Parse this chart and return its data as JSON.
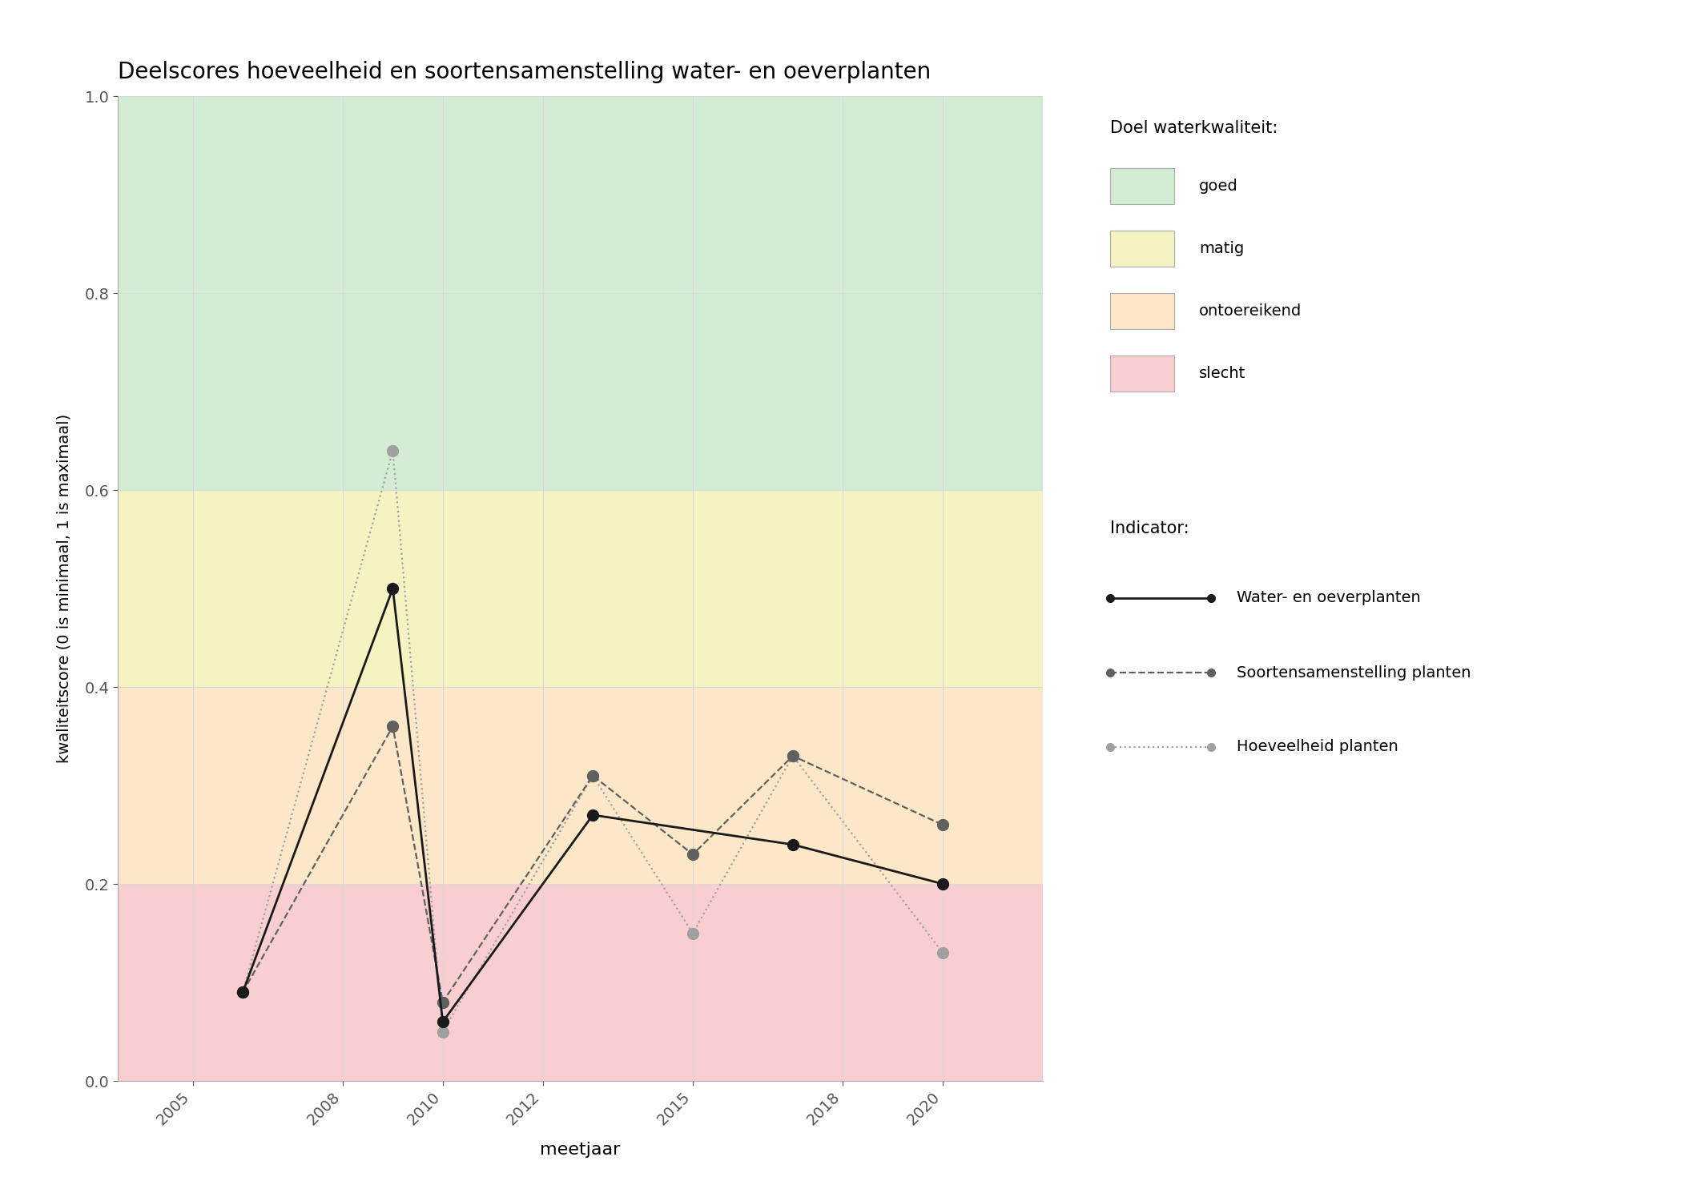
{
  "title": "Deelscores hoeveelheid en soortensamenstelling water- en oeverplanten",
  "xlabel": "meetjaar",
  "ylabel": "kwaliteitscore (0 is minimaal, 1 is maximaal)",
  "ylim": [
    0.0,
    1.0
  ],
  "xlim": [
    2003.5,
    2022.0
  ],
  "xticks": [
    2005,
    2008,
    2010,
    2012,
    2015,
    2018,
    2020
  ],
  "yticks": [
    0.0,
    0.2,
    0.4,
    0.6,
    0.8,
    1.0
  ],
  "background_color": "#ffffff",
  "grid_color": "#d9d9d9",
  "quality_bands": [
    {
      "ymin": 0.6,
      "ymax": 1.0,
      "color": "#d5ecd4",
      "label": "goed"
    },
    {
      "ymin": 0.4,
      "ymax": 0.6,
      "color": "#f5f3c1",
      "label": "matig"
    },
    {
      "ymin": 0.2,
      "ymax": 0.4,
      "color": "#fce8c8",
      "label": "ontoereikend"
    },
    {
      "ymin": 0.0,
      "ymax": 0.2,
      "color": "#f9ced0",
      "label": "slecht"
    }
  ],
  "series": {
    "water_oeverplanten": {
      "label": "Water- en oeverplanten",
      "x": [
        2006,
        2009,
        2010,
        2013,
        2017,
        2020
      ],
      "y": [
        0.09,
        0.5,
        0.06,
        0.27,
        0.24,
        0.2
      ],
      "color": "#1a1a1a",
      "linestyle": "solid",
      "linewidth": 2.0,
      "marker": "o",
      "markersize": 10,
      "zorder": 5
    },
    "soortensamenstelling": {
      "label": "Soortensamenstelling planten",
      "x": [
        2006,
        2009,
        2010,
        2013,
        2015,
        2017,
        2020
      ],
      "y": [
        0.09,
        0.36,
        0.08,
        0.31,
        0.23,
        0.33,
        0.26
      ],
      "color": "#606060",
      "linestyle": "dashed",
      "linewidth": 1.6,
      "marker": "o",
      "markersize": 10,
      "zorder": 4
    },
    "hoeveelheid": {
      "label": "Hoeveelheid planten",
      "x": [
        2006,
        2009,
        2010,
        2013,
        2015,
        2017,
        2020
      ],
      "y": [
        0.09,
        0.64,
        0.05,
        0.31,
        0.15,
        0.33,
        0.13
      ],
      "color": "#a0a0a0",
      "linestyle": "dotted",
      "linewidth": 1.6,
      "marker": "o",
      "markersize": 10,
      "zorder": 3
    }
  },
  "legend_doel_title": "Doel waterkwaliteit:",
  "legend_indicator_title": "Indicator:",
  "legend_band_labels": [
    "goed",
    "matig",
    "ontoereikend",
    "slecht"
  ],
  "legend_band_colors": [
    "#d5ecd4",
    "#f5f3c1",
    "#fce8c8",
    "#f9ced0"
  ]
}
